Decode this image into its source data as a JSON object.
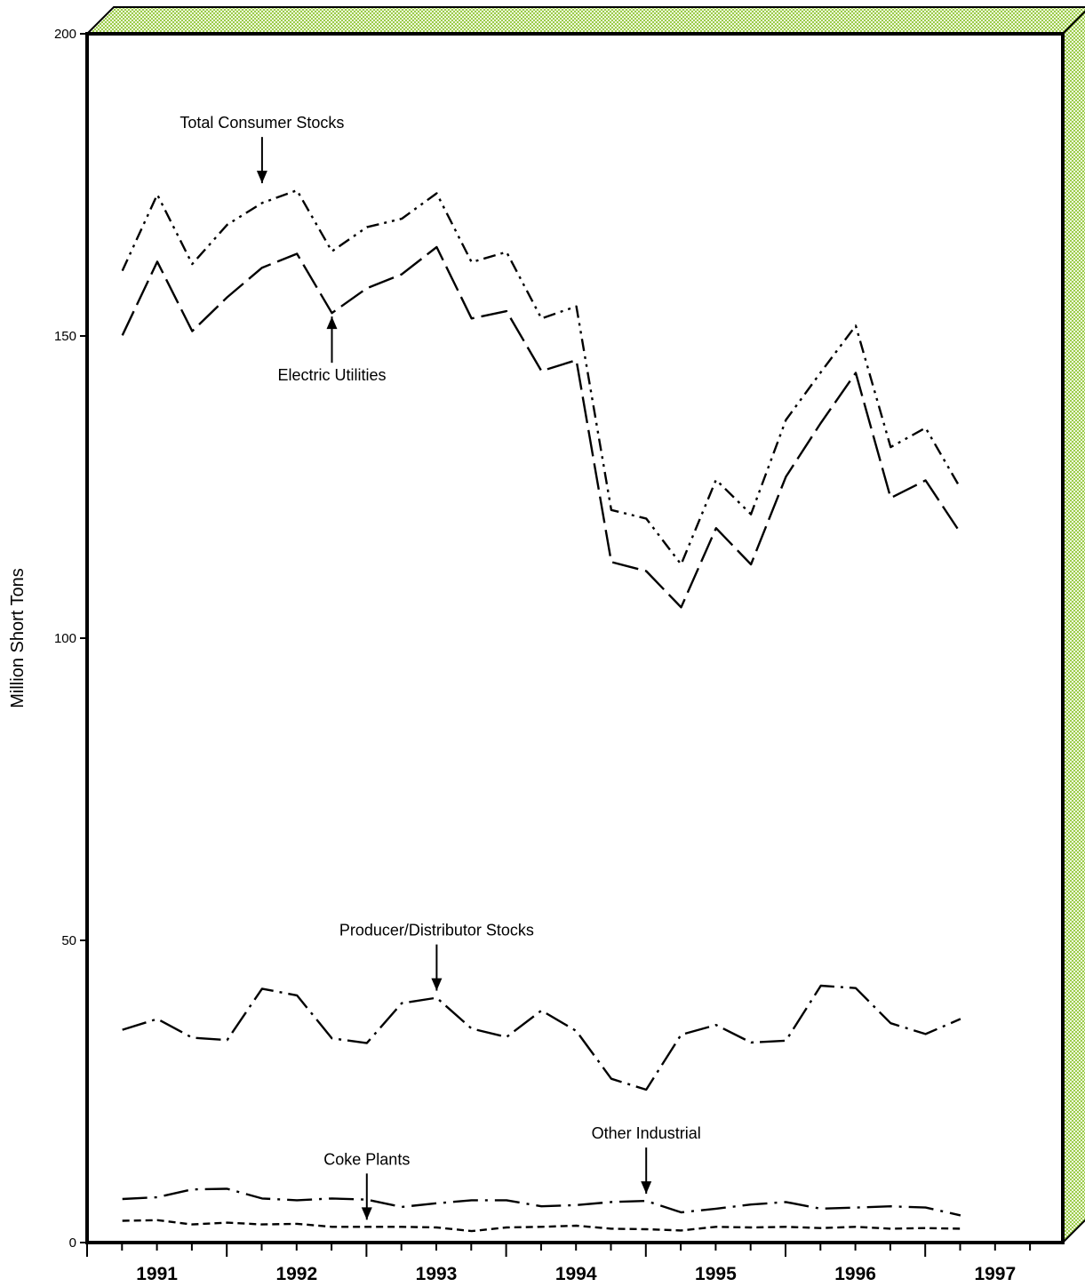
{
  "chart_data": {
    "type": "line",
    "title": "",
    "xlabel": "",
    "ylabel": "Million Short Tons",
    "ylim": [
      0,
      200
    ],
    "y_ticks": [
      0,
      50,
      100,
      150,
      200
    ],
    "x_years": [
      "1991",
      "1992",
      "1993",
      "1994",
      "1995",
      "1996",
      "1997"
    ],
    "x": [
      "1990 Q4",
      "1991 Q1",
      "1991 Q2",
      "1991 Q3",
      "1991 Q4",
      "1992 Q1",
      "1992 Q2",
      "1992 Q3",
      "1992 Q4",
      "1993 Q1",
      "1993 Q2",
      "1993 Q3",
      "1993 Q4",
      "1994 Q1",
      "1994 Q2",
      "1994 Q3",
      "1994 Q4",
      "1995 Q1",
      "1995 Q2",
      "1995 Q3",
      "1995 Q4",
      "1996 Q1",
      "1996 Q2",
      "1996 Q3",
      "1996 Q4"
    ],
    "grid": false,
    "legend": "none",
    "series": [
      {
        "name": "Total Consumer Stocks",
        "dash": "14,6,3,6,3,6",
        "values": [
          160.8,
          173.4,
          161.9,
          168.4,
          172.0,
          174.1,
          164.0,
          168.0,
          169.4,
          173.6,
          162.2,
          163.9,
          152.9,
          154.9,
          121.2,
          119.8,
          112.2,
          126.2,
          120.5,
          136.1,
          144.0,
          151.7,
          131.6,
          134.8,
          124.8
        ]
      },
      {
        "name": "Electric Utilities",
        "dash": "30,8",
        "values": [
          150.1,
          162.3,
          150.8,
          156.4,
          161.3,
          163.6,
          153.8,
          157.9,
          160.2,
          164.7,
          152.9,
          154.1,
          144.2,
          146.0,
          112.6,
          111.1,
          105.1,
          118.2,
          112.2,
          126.7,
          135.6,
          143.9,
          123.2,
          126.1,
          117.4
        ]
      },
      {
        "name": "Producer/Distributor Stocks",
        "dash": "28,7,3,7",
        "values": [
          35.2,
          37.0,
          33.9,
          33.5,
          42.0,
          40.9,
          33.8,
          33.0,
          39.6,
          40.5,
          35.4,
          34.0,
          38.4,
          35.0,
          27.1,
          25.3,
          34.4,
          36.0,
          33.1,
          33.4,
          42.5,
          42.1,
          36.3,
          34.5,
          37.0
        ]
      },
      {
        "name": "Other Industrial",
        "dash": "28,8,3,8",
        "values": [
          7.2,
          7.5,
          8.8,
          8.9,
          7.3,
          7.0,
          7.3,
          7.1,
          5.9,
          6.5,
          7.0,
          7.0,
          6.0,
          6.2,
          6.7,
          6.9,
          5.0,
          5.6,
          6.3,
          6.7,
          5.6,
          5.8,
          6.0,
          5.8,
          4.5
        ]
      },
      {
        "name": "Coke Plants",
        "dash": "8,5",
        "values": [
          3.6,
          3.7,
          3.0,
          3.3,
          3.0,
          3.1,
          2.6,
          2.6,
          2.6,
          2.5,
          1.9,
          2.5,
          2.6,
          2.8,
          2.3,
          2.2,
          2.0,
          2.6,
          2.5,
          2.6,
          2.4,
          2.6,
          2.3,
          2.4,
          2.3
        ]
      }
    ],
    "annotations": [
      {
        "text": "Total Consumer Stocks",
        "series": "Total Consumer Stocks",
        "x": "1991 Q4",
        "y": 174.1,
        "arrow": "down"
      },
      {
        "text": "Electric Utilities",
        "series": "Electric Utilities",
        "x": "1992 Q2",
        "y": 153.8,
        "arrow": "up"
      },
      {
        "text": "Producer/Distributor Stocks",
        "series": "Producer/Distributor Stocks",
        "x": "1993 Q1",
        "y": 40.5,
        "arrow": "down"
      },
      {
        "text": "Coke Plants",
        "series": "Coke Plants",
        "x": "1992 Q3",
        "y": 2.6,
        "arrow": "down"
      },
      {
        "text": "Other Industrial",
        "series": "Other Industrial",
        "x": "1994 Q3",
        "y": 6.9,
        "arrow": "down"
      }
    ]
  }
}
